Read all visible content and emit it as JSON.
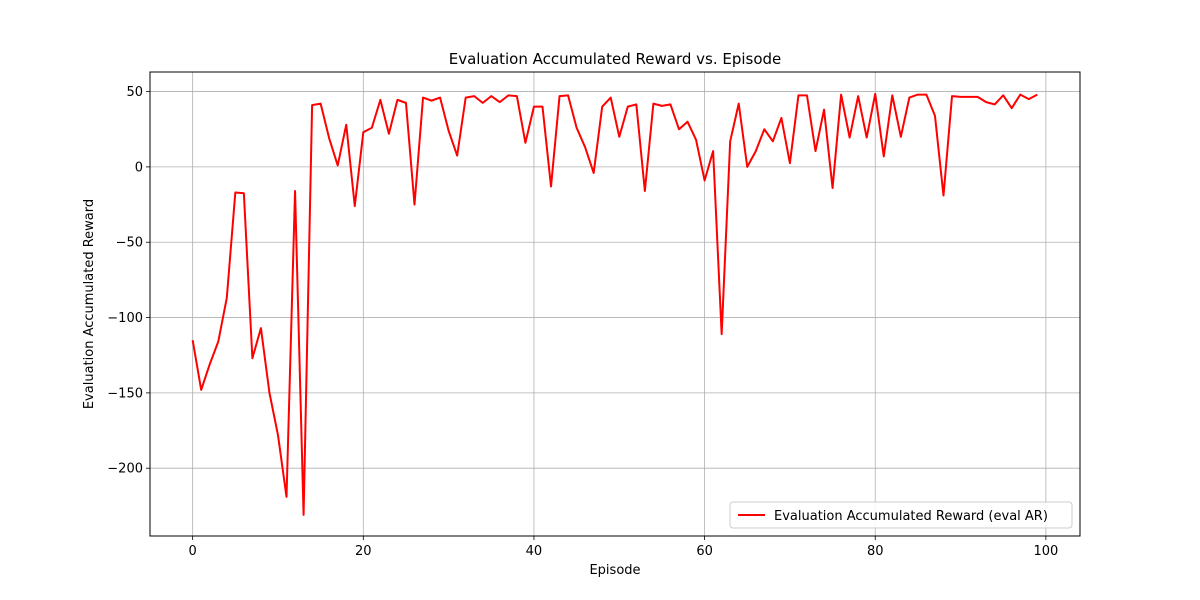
{
  "chart_data": {
    "type": "line",
    "title": "Evaluation Accumulated Reward vs. Episode",
    "xlabel": "Episode",
    "ylabel": "Evaluation Accumulated Reward",
    "xlim": [
      -5,
      104
    ],
    "ylim": [
      -245,
      63
    ],
    "xticks": [
      0,
      20,
      40,
      60,
      80,
      100
    ],
    "yticks": [
      50,
      0,
      -50,
      -100,
      -150,
      -200
    ],
    "grid": true,
    "legend_position": "lower-right",
    "series": [
      {
        "name": "Evaluation Accumulated Reward (eval AR)",
        "color": "#ff0000",
        "x": [
          0,
          1,
          2,
          3,
          4,
          5,
          6,
          7,
          8,
          9,
          10,
          11,
          12,
          13,
          14,
          15,
          16,
          17,
          18,
          19,
          20,
          21,
          22,
          23,
          24,
          25,
          26,
          27,
          28,
          29,
          30,
          31,
          32,
          33,
          34,
          35,
          36,
          37,
          38,
          39,
          40,
          41,
          42,
          43,
          44,
          45,
          46,
          47,
          48,
          49,
          50,
          51,
          52,
          53,
          54,
          55,
          56,
          57,
          58,
          59,
          60,
          61,
          62,
          63,
          64,
          65,
          66,
          67,
          68,
          69,
          70,
          71,
          72,
          73,
          74,
          75,
          76,
          77,
          78,
          79,
          80,
          81,
          82,
          83,
          84,
          85,
          86,
          87,
          88,
          89,
          90,
          91,
          92,
          93,
          94,
          95,
          96,
          97,
          98,
          99
        ],
        "y": [
          -115,
          -148,
          -131,
          -116,
          -87,
          -17,
          -17.5,
          -127,
          -107,
          -150,
          -178,
          -219,
          -16,
          -231,
          41,
          42,
          19,
          1,
          28,
          -26,
          23,
          26,
          44.5,
          22,
          44.5,
          42.5,
          -25,
          46,
          44,
          46,
          24,
          7.5,
          46,
          47,
          42.5,
          47,
          43,
          47.5,
          47,
          16,
          40,
          40,
          -13,
          47,
          47.5,
          26,
          13,
          -4,
          40,
          46,
          20,
          40,
          41.5,
          -16,
          42,
          40.5,
          41.5,
          25,
          30,
          18,
          -9,
          10.5,
          -111,
          17,
          42,
          0,
          10.5,
          25,
          17,
          32.5,
          2.5,
          47.5,
          47.5,
          10.5,
          38,
          -14,
          48,
          19.5,
          47,
          19.5,
          48.5,
          7,
          47.5,
          20,
          46,
          48,
          48,
          34,
          -19,
          47,
          46.5,
          46.5,
          46.5,
          43,
          41.5,
          47.5,
          39,
          48,
          45,
          48
        ]
      }
    ]
  }
}
